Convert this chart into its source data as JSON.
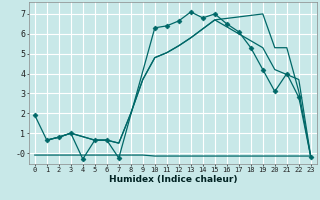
{
  "title": "",
  "xlabel": "Humidex (Indice chaleur)",
  "background_color": "#c8e8e8",
  "grid_color": "#ffffff",
  "line_color": "#006868",
  "xlim": [
    -0.5,
    23.5
  ],
  "ylim": [
    -0.55,
    7.6
  ],
  "xticks": [
    0,
    1,
    2,
    3,
    4,
    5,
    6,
    7,
    8,
    9,
    10,
    11,
    12,
    13,
    14,
    15,
    16,
    17,
    18,
    19,
    20,
    21,
    22,
    23
  ],
  "yticks": [
    0,
    1,
    2,
    3,
    4,
    5,
    6,
    7
  ],
  "ytick_labels": [
    "-0",
    "1",
    "2",
    "3",
    "4",
    "5",
    "6",
    "7"
  ],
  "series": [
    {
      "x": [
        0,
        1,
        2,
        3,
        4,
        5,
        6,
        7,
        10,
        11,
        12,
        13,
        14,
        15,
        16,
        17,
        18,
        19,
        20,
        21,
        22,
        23
      ],
      "y": [
        1.9,
        0.65,
        0.8,
        1.0,
        -0.3,
        0.65,
        0.65,
        -0.25,
        6.3,
        6.4,
        6.65,
        7.1,
        6.8,
        7.0,
        6.5,
        6.1,
        5.3,
        4.2,
        3.1,
        4.0,
        2.8,
        -0.2
      ],
      "marker": "D",
      "markersize": 2.5
    },
    {
      "x": [
        1,
        2,
        3,
        5,
        6,
        7,
        8,
        9,
        10,
        11,
        12,
        13,
        14,
        15,
        19,
        20,
        22,
        23
      ],
      "y": [
        0.65,
        0.8,
        1.0,
        0.65,
        0.65,
        0.5,
        2.0,
        3.7,
        4.8,
        5.05,
        5.4,
        5.8,
        6.25,
        6.7,
        5.3,
        4.2,
        3.7,
        -0.2
      ],
      "marker": null
    },
    {
      "x": [
        1,
        2,
        3,
        5,
        6,
        7,
        8,
        9,
        10,
        11,
        12,
        13,
        14,
        15,
        19,
        20,
        21,
        22,
        23
      ],
      "y": [
        0.65,
        0.8,
        1.0,
        0.65,
        0.65,
        0.5,
        2.0,
        3.7,
        4.8,
        5.05,
        5.4,
        5.8,
        6.25,
        6.7,
        7.0,
        5.3,
        5.3,
        3.1,
        -0.2
      ],
      "marker": null
    },
    {
      "x": [
        0,
        1,
        2,
        3,
        4,
        5,
        6,
        7,
        8,
        9,
        10,
        11,
        12,
        13,
        14,
        15,
        16,
        17,
        18,
        19,
        20,
        21,
        22,
        23
      ],
      "y": [
        -0.1,
        -0.1,
        -0.1,
        -0.1,
        -0.1,
        -0.1,
        -0.1,
        -0.1,
        -0.1,
        -0.1,
        -0.15,
        -0.15,
        -0.15,
        -0.15,
        -0.15,
        -0.15,
        -0.15,
        -0.15,
        -0.15,
        -0.15,
        -0.15,
        -0.15,
        -0.15,
        -0.15
      ],
      "marker": null
    }
  ]
}
